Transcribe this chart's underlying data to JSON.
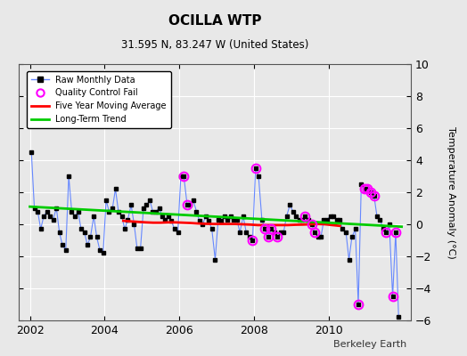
{
  "title": "OCILLA WTP",
  "subtitle": "31.595 N, 83.247 W (United States)",
  "ylabel": "Temperature Anomaly (°C)",
  "watermark": "Berkeley Earth",
  "xlim": [
    2001.7,
    2012.2
  ],
  "ylim": [
    -6,
    10
  ],
  "yticks": [
    -6,
    -4,
    -2,
    0,
    2,
    4,
    6,
    8,
    10
  ],
  "xticks": [
    2002,
    2004,
    2006,
    2008,
    2010
  ],
  "bg_color": "#e8e8e8",
  "raw_x": [
    2002.04,
    2002.12,
    2002.21,
    2002.29,
    2002.37,
    2002.46,
    2002.54,
    2002.62,
    2002.71,
    2002.79,
    2002.87,
    2002.96,
    2003.04,
    2003.12,
    2003.21,
    2003.29,
    2003.37,
    2003.46,
    2003.54,
    2003.62,
    2003.71,
    2003.79,
    2003.87,
    2003.96,
    2004.04,
    2004.12,
    2004.21,
    2004.29,
    2004.37,
    2004.46,
    2004.54,
    2004.62,
    2004.71,
    2004.79,
    2004.87,
    2004.96,
    2005.04,
    2005.12,
    2005.21,
    2005.29,
    2005.37,
    2005.46,
    2005.54,
    2005.62,
    2005.71,
    2005.79,
    2005.87,
    2005.96,
    2006.04,
    2006.12,
    2006.21,
    2006.29,
    2006.37,
    2006.46,
    2006.54,
    2006.62,
    2006.71,
    2006.79,
    2006.87,
    2006.96,
    2007.04,
    2007.12,
    2007.21,
    2007.29,
    2007.37,
    2007.46,
    2007.54,
    2007.62,
    2007.71,
    2007.79,
    2007.87,
    2007.96,
    2008.04,
    2008.12,
    2008.21,
    2008.29,
    2008.37,
    2008.46,
    2008.54,
    2008.62,
    2008.71,
    2008.79,
    2008.87,
    2008.96,
    2009.04,
    2009.12,
    2009.21,
    2009.29,
    2009.37,
    2009.46,
    2009.54,
    2009.62,
    2009.71,
    2009.79,
    2009.87,
    2009.96,
    2010.04,
    2010.12,
    2010.21,
    2010.29,
    2010.37,
    2010.46,
    2010.54,
    2010.62,
    2010.71,
    2010.79,
    2010.87,
    2010.96,
    2011.04,
    2011.12,
    2011.21,
    2011.29,
    2011.37,
    2011.46,
    2011.54,
    2011.62,
    2011.71,
    2011.79,
    2011.87
  ],
  "raw_y": [
    4.5,
    1.0,
    0.8,
    -0.3,
    0.5,
    0.8,
    0.5,
    0.3,
    1.0,
    -0.5,
    -1.3,
    -1.6,
    3.0,
    0.8,
    0.5,
    0.8,
    -0.3,
    -0.5,
    -1.3,
    -0.8,
    0.5,
    -0.8,
    -1.6,
    -1.8,
    1.5,
    0.8,
    1.0,
    2.2,
    0.8,
    0.5,
    -0.3,
    0.3,
    1.2,
    0.0,
    -1.5,
    -1.5,
    1.0,
    1.2,
    1.5,
    0.8,
    0.8,
    1.0,
    0.5,
    0.3,
    0.5,
    0.2,
    -0.3,
    -0.5,
    3.0,
    3.0,
    1.2,
    1.2,
    1.5,
    0.8,
    0.2,
    0.0,
    0.5,
    0.2,
    -0.3,
    -2.2,
    0.3,
    0.2,
    0.5,
    0.3,
    0.5,
    0.3,
    0.3,
    -0.5,
    0.5,
    -0.5,
    -0.8,
    -1.0,
    3.5,
    3.0,
    0.3,
    -0.3,
    -0.8,
    -0.3,
    -0.5,
    -0.8,
    -0.5,
    -0.5,
    0.5,
    1.2,
    0.8,
    0.5,
    0.3,
    0.3,
    0.5,
    0.3,
    0.0,
    -0.5,
    -0.8,
    -0.8,
    0.3,
    0.3,
    0.5,
    0.5,
    0.3,
    0.3,
    -0.3,
    -0.5,
    -2.2,
    -0.8,
    -0.3,
    -5.0,
    2.5,
    2.2,
    2.2,
    2.0,
    1.8,
    0.5,
    0.3,
    -0.3,
    -0.5,
    0.0,
    -4.5,
    -0.5,
    -5.8
  ],
  "qc_fail_x": [
    2006.12,
    2006.21,
    2007.96,
    2008.04,
    2008.29,
    2008.37,
    2008.46,
    2008.62,
    2009.37,
    2009.54,
    2009.62,
    2010.79,
    2010.96,
    2011.04,
    2011.12,
    2011.21,
    2011.54,
    2011.71,
    2011.79
  ],
  "qc_fail_y": [
    3.0,
    1.2,
    -1.0,
    3.5,
    -0.3,
    -0.8,
    -0.3,
    -0.8,
    0.5,
    0.0,
    -0.5,
    -5.0,
    2.2,
    2.2,
    2.0,
    1.8,
    -0.5,
    -4.5,
    -0.5
  ],
  "moving_avg_x": [
    2004.5,
    2004.7,
    2004.9,
    2005.1,
    2005.3,
    2005.5,
    2005.7,
    2005.9,
    2006.1,
    2006.3,
    2006.5,
    2006.7,
    2006.9,
    2007.1,
    2007.3,
    2007.5,
    2007.7,
    2007.9,
    2008.1,
    2008.3,
    2008.5,
    2008.7,
    2008.9,
    2009.1,
    2009.3,
    2009.5,
    2009.7,
    2009.9,
    2010.1,
    2010.3
  ],
  "moving_avg_y": [
    0.22,
    0.18,
    0.15,
    0.12,
    0.1,
    0.1,
    0.12,
    0.12,
    0.1,
    0.08,
    0.05,
    0.03,
    0.02,
    0.02,
    0.02,
    0.02,
    0.0,
    -0.02,
    -0.05,
    -0.05,
    -0.05,
    -0.05,
    -0.05,
    -0.03,
    -0.02,
    0.0,
    0.02,
    0.0,
    -0.05,
    -0.1
  ],
  "trend_x": [
    2002.0,
    2011.95
  ],
  "trend_y": [
    1.1,
    -0.15
  ],
  "raw_line_color": "#6688ff",
  "marker_color": "#000000",
  "qc_color": "#ff00ff",
  "moving_avg_color": "#ff0000",
  "trend_color": "#00cc00",
  "grid_color": "#ffffff"
}
